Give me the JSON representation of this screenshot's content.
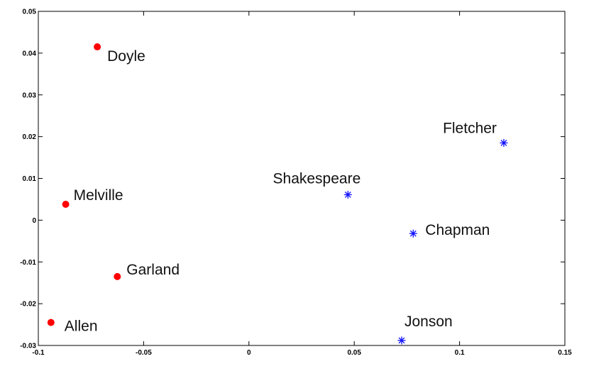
{
  "chart_data": {
    "type": "scatter",
    "title": "",
    "xlabel": "",
    "ylabel": "",
    "xlim": [
      -0.1,
      0.15
    ],
    "ylim": [
      -0.03,
      0.05
    ],
    "grid": false,
    "x_ticks": [
      "-0.1",
      "-0.05",
      "0",
      "0.05",
      "0.1",
      "0.15"
    ],
    "y_ticks": [
      "-0.03",
      "-0.02",
      "-0.01",
      "0",
      "0.01",
      "0.02",
      "0.03",
      "0.04",
      "0.05"
    ],
    "series": [
      {
        "marker": "dot",
        "color": "#ff0000",
        "points": [
          {
            "label": "Doyle",
            "x": -0.072,
            "y": 0.0415
          },
          {
            "label": "Melville",
            "x": -0.087,
            "y": 0.0038
          },
          {
            "label": "Garland",
            "x": -0.0625,
            "y": -0.0135
          },
          {
            "label": "Allen",
            "x": -0.094,
            "y": -0.0245
          }
        ]
      },
      {
        "marker": "asterisk",
        "color": "#1010ff",
        "points": [
          {
            "label": "Fletcher",
            "x": 0.121,
            "y": 0.0185
          },
          {
            "label": "Shakespeare",
            "x": 0.047,
            "y": 0.0061
          },
          {
            "label": "Chapman",
            "x": 0.078,
            "y": -0.0032
          },
          {
            "label": "Jonson",
            "x": 0.0725,
            "y": -0.0288
          }
        ]
      }
    ]
  }
}
